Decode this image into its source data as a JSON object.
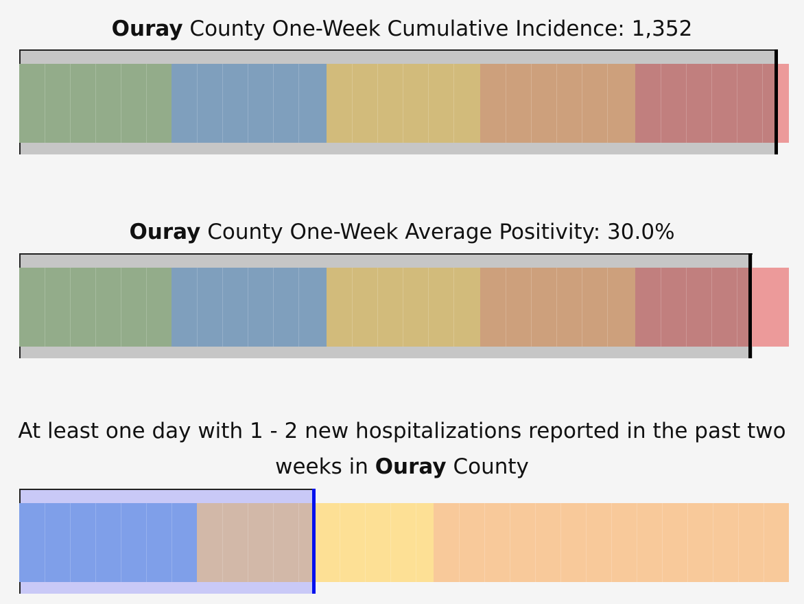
{
  "panels": [
    {
      "title": {
        "county": "Ouray",
        "after": "County One-Week Cumulative Incidence: 1,352"
      }
    },
    {
      "title": {
        "county": "Ouray",
        "after": "County One-Week Average Positivity: 30.0%"
      }
    },
    {
      "title": {
        "before": "At least one day with 1 - 2 new hospitalizations reported in the past two weeks in",
        "county": "Ouray",
        "after": "County"
      }
    }
  ]
}
